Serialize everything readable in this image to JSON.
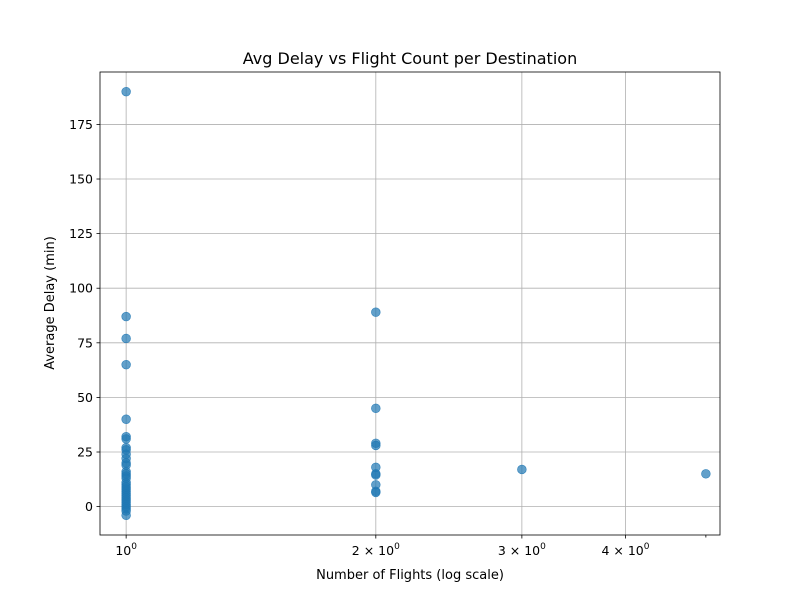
{
  "chart_data": {
    "type": "scatter",
    "title": "Avg Delay vs Flight Count per Destination",
    "xlabel": "Number of Flights (log scale)",
    "ylabel": "Average Delay (min)",
    "x_scale": "log",
    "xlim": [
      0.93,
      5.2
    ],
    "ylim": [
      -13,
      199
    ],
    "grid": true,
    "point_color": "#1f77b4",
    "x_ticks": [
      {
        "value": 1,
        "base": "10",
        "exp": "0",
        "coef": ""
      },
      {
        "value": 2,
        "base": "10",
        "exp": "0",
        "coef": "2 × "
      },
      {
        "value": 3,
        "base": "10",
        "exp": "0",
        "coef": "3 × "
      },
      {
        "value": 4,
        "base": "10",
        "exp": "0",
        "coef": "4 × "
      }
    ],
    "x_minor_ticks": [
      5
    ],
    "y_ticks": [
      0,
      25,
      50,
      75,
      100,
      125,
      150,
      175
    ],
    "points": [
      {
        "x": 1,
        "y": 190
      },
      {
        "x": 1,
        "y": 87
      },
      {
        "x": 1,
        "y": 77
      },
      {
        "x": 1,
        "y": 65
      },
      {
        "x": 1,
        "y": 40
      },
      {
        "x": 1,
        "y": 32
      },
      {
        "x": 1,
        "y": 31
      },
      {
        "x": 1,
        "y": 27
      },
      {
        "x": 1,
        "y": 26
      },
      {
        "x": 1,
        "y": 24
      },
      {
        "x": 1,
        "y": 22
      },
      {
        "x": 1,
        "y": 20
      },
      {
        "x": 1,
        "y": 19
      },
      {
        "x": 1,
        "y": 16
      },
      {
        "x": 1,
        "y": 15
      },
      {
        "x": 1,
        "y": 14
      },
      {
        "x": 1,
        "y": 13
      },
      {
        "x": 1,
        "y": 11
      },
      {
        "x": 1,
        "y": 10
      },
      {
        "x": 1,
        "y": 9
      },
      {
        "x": 1,
        "y": 8
      },
      {
        "x": 1,
        "y": 7
      },
      {
        "x": 1,
        "y": 6
      },
      {
        "x": 1,
        "y": 5
      },
      {
        "x": 1,
        "y": 4
      },
      {
        "x": 1,
        "y": 3
      },
      {
        "x": 1,
        "y": 2
      },
      {
        "x": 1,
        "y": 1
      },
      {
        "x": 1,
        "y": 0
      },
      {
        "x": 1,
        "y": -1
      },
      {
        "x": 1,
        "y": -2
      },
      {
        "x": 1,
        "y": -4
      },
      {
        "x": 2,
        "y": 89
      },
      {
        "x": 2,
        "y": 45
      },
      {
        "x": 2,
        "y": 29
      },
      {
        "x": 2,
        "y": 28
      },
      {
        "x": 2,
        "y": 18
      },
      {
        "x": 2,
        "y": 15
      },
      {
        "x": 2,
        "y": 14.5
      },
      {
        "x": 2,
        "y": 10
      },
      {
        "x": 2,
        "y": 7
      },
      {
        "x": 2,
        "y": 6.5
      },
      {
        "x": 3,
        "y": 17
      },
      {
        "x": 5,
        "y": 15
      }
    ]
  }
}
